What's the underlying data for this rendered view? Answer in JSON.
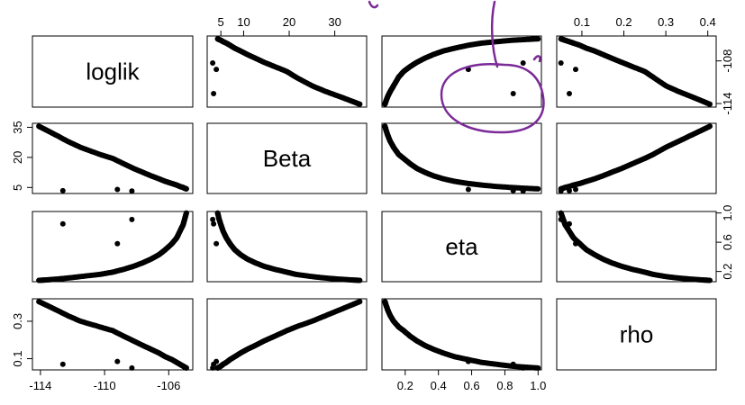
{
  "chart_data": {
    "type": "scatter-matrix",
    "variables": [
      "loglik",
      "Beta",
      "eta",
      "rho"
    ],
    "ranges": {
      "loglik": [
        -114.5,
        -104.5
      ],
      "Beta": [
        2,
        37
      ],
      "eta": [
        0.06,
        1.02
      ],
      "rho": [
        0.04,
        0.42
      ]
    },
    "ticks": {
      "loglik": {
        "values": [
          -114,
          -110,
          -106
        ],
        "labels": [
          "-114",
          "-110",
          "-106"
        ]
      },
      "loglik_right": {
        "values": [
          -108,
          -114
        ],
        "labels": [
          "-108",
          "-114"
        ]
      },
      "Beta": {
        "values": [
          5,
          10,
          20,
          30
        ],
        "labels": [
          "5",
          "10",
          "20",
          "30"
        ]
      },
      "Beta_left": {
        "values": [
          5,
          20,
          35
        ],
        "labels": [
          "5",
          "20",
          "35"
        ]
      },
      "eta": {
        "values": [
          0.2,
          0.4,
          0.6,
          0.8,
          1.0
        ],
        "labels": [
          "0.2",
          "0.4",
          "0.6",
          "0.8",
          "1.0"
        ]
      },
      "eta_right": {
        "values": [
          0.2,
          0.6,
          1.0
        ],
        "labels": [
          "0.2",
          "0.6",
          "1.0"
        ]
      },
      "rho": {
        "values": [
          0.1,
          0.2,
          0.3,
          0.4
        ],
        "labels": [
          "0.1",
          "0.2",
          "0.3",
          "0.4"
        ]
      },
      "rho_left": {
        "values": [
          0.1,
          0.3
        ],
        "labels": [
          "0.1",
          "0.3"
        ]
      }
    },
    "curve_samples": [
      {
        "loglik": -104.9,
        "Beta": 4.3,
        "eta": 1.0,
        "rho": 0.05
      },
      {
        "loglik": -105.0,
        "Beta": 4.6,
        "eta": 0.92,
        "rho": 0.055
      },
      {
        "loglik": -105.1,
        "Beta": 5.0,
        "eta": 0.84,
        "rho": 0.06
      },
      {
        "loglik": -105.3,
        "Beta": 5.5,
        "eta": 0.75,
        "rho": 0.07
      },
      {
        "loglik": -105.5,
        "Beta": 6.2,
        "eta": 0.66,
        "rho": 0.08
      },
      {
        "loglik": -105.8,
        "Beta": 7.0,
        "eta": 0.58,
        "rho": 0.095
      },
      {
        "loglik": -106.2,
        "Beta": 8.0,
        "eta": 0.5,
        "rho": 0.11
      },
      {
        "loglik": -106.6,
        "Beta": 9.3,
        "eta": 0.43,
        "rho": 0.13
      },
      {
        "loglik": -107.1,
        "Beta": 10.8,
        "eta": 0.37,
        "rho": 0.15
      },
      {
        "loglik": -107.6,
        "Beta": 12.5,
        "eta": 0.32,
        "rho": 0.17
      },
      {
        "loglik": -108.2,
        "Beta": 14.5,
        "eta": 0.27,
        "rho": 0.195
      },
      {
        "loglik": -108.8,
        "Beta": 16.8,
        "eta": 0.23,
        "rho": 0.22
      },
      {
        "loglik": -109.5,
        "Beta": 19.5,
        "eta": 0.19,
        "rho": 0.25
      },
      {
        "loglik": -110.3,
        "Beta": 21.5,
        "eta": 0.16,
        "rho": 0.27
      },
      {
        "loglik": -111.5,
        "Beta": 25.0,
        "eta": 0.13,
        "rho": 0.3
      },
      {
        "loglik": -112.3,
        "Beta": 28.0,
        "eta": 0.11,
        "rho": 0.33
      },
      {
        "loglik": -113.0,
        "Beta": 31.0,
        "eta": 0.095,
        "rho": 0.36
      },
      {
        "loglik": -113.6,
        "Beta": 33.5,
        "eta": 0.085,
        "rho": 0.385
      },
      {
        "loglik": -114.1,
        "Beta": 35.5,
        "eta": 0.078,
        "rho": 0.405
      }
    ],
    "outliers": [
      {
        "loglik": -108.3,
        "Beta": 3.2,
        "eta": 0.91,
        "rho": 0.05
      },
      {
        "loglik": -109.2,
        "Beta": 4.0,
        "eta": 0.58,
        "rho": 0.085
      },
      {
        "loglik": -112.6,
        "Beta": 3.4,
        "eta": 0.85,
        "rho": 0.07
      }
    ],
    "grid": false,
    "legend": "none"
  },
  "annotation": {
    "color": "#7b2a98",
    "description": "hand-drawn purple ellipse circling outlier points"
  }
}
